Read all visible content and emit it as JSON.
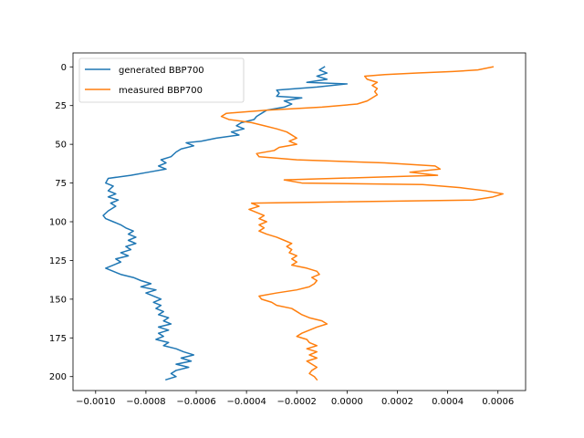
{
  "chart_data": {
    "type": "line",
    "title": "",
    "xlabel": "",
    "ylabel": "",
    "xlim": [
      -0.00109,
      0.00071
    ],
    "ylim": [
      209,
      -9
    ],
    "y_inverted": true,
    "grid": false,
    "legend_position": "top-left",
    "xticks": [
      {
        "value": -0.001,
        "label": "−0.0010"
      },
      {
        "value": -0.0008,
        "label": "−0.0008"
      },
      {
        "value": -0.0006,
        "label": "−0.0006"
      },
      {
        "value": -0.0004,
        "label": "−0.0004"
      },
      {
        "value": -0.0002,
        "label": "−0.0002"
      },
      {
        "value": 0.0,
        "label": "0.0000"
      },
      {
        "value": 0.0002,
        "label": "0.0002"
      },
      {
        "value": 0.0004,
        "label": "0.0004"
      },
      {
        "value": 0.0006,
        "label": "0.0006"
      }
    ],
    "yticks": [
      {
        "value": 0,
        "label": "0"
      },
      {
        "value": 25,
        "label": "25"
      },
      {
        "value": 50,
        "label": "50"
      },
      {
        "value": 75,
        "label": "75"
      },
      {
        "value": 100,
        "label": "100"
      },
      {
        "value": 125,
        "label": "125"
      },
      {
        "value": 150,
        "label": "150"
      },
      {
        "value": 175,
        "label": "175"
      },
      {
        "value": 200,
        "label": "200"
      }
    ],
    "series": [
      {
        "name": "generated BBP700",
        "color": "#1f77b4",
        "points": [
          [
            -9e-05,
            0
          ],
          [
            -0.00011,
            2
          ],
          [
            -8e-05,
            4
          ],
          [
            -0.00012,
            6
          ],
          [
            -8e-05,
            8
          ],
          [
            -0.00016,
            10
          ],
          [
            0.0,
            11
          ],
          [
            -0.00012,
            13
          ],
          [
            -0.00028,
            15
          ],
          [
            -0.00027,
            17
          ],
          [
            -0.00028,
            19
          ],
          [
            -0.00018,
            20
          ],
          [
            -0.00025,
            22
          ],
          [
            -0.00022,
            24
          ],
          [
            -0.00025,
            26
          ],
          [
            -0.00032,
            28
          ],
          [
            -0.00034,
            30
          ],
          [
            -0.00036,
            32
          ],
          [
            -0.00037,
            34
          ],
          [
            -0.00042,
            36
          ],
          [
            -0.00044,
            38
          ],
          [
            -0.00041,
            40
          ],
          [
            -0.00046,
            42
          ],
          [
            -0.00043,
            44
          ],
          [
            -0.00052,
            46
          ],
          [
            -0.00058,
            48
          ],
          [
            -0.00064,
            49
          ],
          [
            -0.00061,
            51
          ],
          [
            -0.00066,
            53
          ],
          [
            -0.00068,
            55
          ],
          [
            -0.0007,
            58
          ],
          [
            -0.00074,
            60
          ],
          [
            -0.00072,
            62
          ],
          [
            -0.00075,
            64
          ],
          [
            -0.00072,
            66
          ],
          [
            -0.00079,
            68
          ],
          [
            -0.00086,
            70
          ],
          [
            -0.00095,
            72
          ],
          [
            -0.00096,
            75
          ],
          [
            -0.00093,
            77
          ],
          [
            -0.00095,
            80
          ],
          [
            -0.00092,
            82
          ],
          [
            -0.00095,
            84
          ],
          [
            -0.00091,
            86
          ],
          [
            -0.00094,
            88
          ],
          [
            -0.00092,
            90
          ],
          [
            -0.00095,
            93
          ],
          [
            -0.00097,
            96
          ],
          [
            -0.00096,
            98
          ],
          [
            -0.00093,
            100
          ],
          [
            -0.0009,
            102
          ],
          [
            -0.00088,
            104
          ],
          [
            -0.00085,
            106
          ],
          [
            -0.00087,
            108
          ],
          [
            -0.00084,
            110
          ],
          [
            -0.00087,
            112
          ],
          [
            -0.00084,
            114
          ],
          [
            -0.00088,
            116
          ],
          [
            -0.00086,
            118
          ],
          [
            -0.0009,
            120
          ],
          [
            -0.00087,
            122
          ],
          [
            -0.00092,
            124
          ],
          [
            -0.0009,
            126
          ],
          [
            -0.00093,
            128
          ],
          [
            -0.00096,
            130
          ],
          [
            -0.00093,
            132
          ],
          [
            -0.0009,
            134
          ],
          [
            -0.00085,
            136
          ],
          [
            -0.00082,
            138
          ],
          [
            -0.00078,
            140
          ],
          [
            -0.00082,
            142
          ],
          [
            -0.00076,
            144
          ],
          [
            -0.0008,
            146
          ],
          [
            -0.00077,
            148
          ],
          [
            -0.00074,
            150
          ],
          [
            -0.00077,
            152
          ],
          [
            -0.00074,
            154
          ],
          [
            -0.00076,
            156
          ],
          [
            -0.00073,
            158
          ],
          [
            -0.00075,
            160
          ],
          [
            -0.00071,
            162
          ],
          [
            -0.00073,
            164
          ],
          [
            -0.0007,
            166
          ],
          [
            -0.00075,
            168
          ],
          [
            -0.00071,
            170
          ],
          [
            -0.00075,
            172
          ],
          [
            -0.00073,
            174
          ],
          [
            -0.00076,
            176
          ],
          [
            -0.00071,
            178
          ],
          [
            -0.00073,
            180
          ],
          [
            -0.00068,
            182
          ],
          [
            -0.00065,
            184
          ],
          [
            -0.00061,
            186
          ],
          [
            -0.00066,
            188
          ],
          [
            -0.00062,
            190
          ],
          [
            -0.00068,
            192
          ],
          [
            -0.00063,
            194
          ],
          [
            -0.00068,
            196
          ],
          [
            -0.0007,
            198
          ],
          [
            -0.00068,
            200
          ],
          [
            -0.00072,
            202
          ]
        ]
      },
      {
        "name": "measured BBP700",
        "color": "#ff7f0e",
        "points": [
          [
            0.00058,
            0
          ],
          [
            0.00052,
            2
          ],
          [
            0.00042,
            3
          ],
          [
            0.00028,
            4
          ],
          [
            0.00015,
            5
          ],
          [
            7e-05,
            6
          ],
          [
            8e-05,
            8
          ],
          [
            0.00012,
            10
          ],
          [
            0.0001,
            12
          ],
          [
            0.00012,
            14
          ],
          [
            0.00011,
            16
          ],
          [
            0.00012,
            18
          ],
          [
            0.0001,
            20
          ],
          [
            8e-05,
            22
          ],
          [
            4e-05,
            24
          ],
          [
            -0.0001,
            26
          ],
          [
            -0.00032,
            28
          ],
          [
            -0.00048,
            30
          ],
          [
            -0.0005,
            32
          ],
          [
            -0.00047,
            34
          ],
          [
            -0.00038,
            36
          ],
          [
            -0.00033,
            38
          ],
          [
            -0.00028,
            40
          ],
          [
            -0.00024,
            42
          ],
          [
            -0.00022,
            44
          ],
          [
            -0.0002,
            46
          ],
          [
            -0.00023,
            48
          ],
          [
            -0.0002,
            50
          ],
          [
            -0.00027,
            52
          ],
          [
            -0.00029,
            54
          ],
          [
            -0.00036,
            56
          ],
          [
            -0.00035,
            58
          ],
          [
            -0.0002,
            60
          ],
          [
            0.00015,
            62
          ],
          [
            0.00035,
            64
          ],
          [
            0.00037,
            66
          ],
          [
            0.00025,
            68
          ],
          [
            0.00036,
            70
          ],
          [
            -0.00025,
            73
          ],
          [
            -0.00018,
            75
          ],
          [
            0.0003,
            76
          ],
          [
            0.00045,
            78
          ],
          [
            0.00055,
            80
          ],
          [
            0.00062,
            82
          ],
          [
            0.00058,
            84
          ],
          [
            0.0005,
            86
          ],
          [
            -0.00038,
            88
          ],
          [
            -0.00035,
            90
          ],
          [
            -0.00039,
            92
          ],
          [
            -0.00036,
            94
          ],
          [
            -0.00033,
            96
          ],
          [
            -0.00035,
            98
          ],
          [
            -0.00032,
            100
          ],
          [
            -0.00035,
            102
          ],
          [
            -0.00033,
            104
          ],
          [
            -0.00035,
            106
          ],
          [
            -0.00032,
            108
          ],
          [
            -0.00028,
            110
          ],
          [
            -0.00025,
            112
          ],
          [
            -0.00022,
            114
          ],
          [
            -0.00024,
            116
          ],
          [
            -0.00022,
            118
          ],
          [
            -0.00023,
            120
          ],
          [
            -0.0002,
            122
          ],
          [
            -0.00022,
            124
          ],
          [
            -0.0002,
            126
          ],
          [
            -0.00022,
            128
          ],
          [
            -0.00016,
            130
          ],
          [
            -0.00012,
            132
          ],
          [
            -0.00011,
            134
          ],
          [
            -0.00014,
            136
          ],
          [
            -0.00012,
            138
          ],
          [
            -0.00013,
            140
          ],
          [
            -0.00015,
            142
          ],
          [
            -0.0002,
            144
          ],
          [
            -0.00028,
            146
          ],
          [
            -0.00035,
            148
          ],
          [
            -0.00034,
            150
          ],
          [
            -0.0003,
            152
          ],
          [
            -0.00028,
            154
          ],
          [
            -0.00022,
            156
          ],
          [
            -0.0002,
            158
          ],
          [
            -0.00018,
            160
          ],
          [
            -0.00015,
            162
          ],
          [
            -0.0001,
            164
          ],
          [
            -8e-05,
            166
          ],
          [
            -0.00012,
            168
          ],
          [
            -0.00015,
            170
          ],
          [
            -0.00018,
            172
          ],
          [
            -0.0002,
            174
          ],
          [
            -0.00016,
            176
          ],
          [
            -0.00015,
            178
          ],
          [
            -0.00012,
            180
          ],
          [
            -0.00016,
            182
          ],
          [
            -0.00012,
            184
          ],
          [
            -0.00015,
            186
          ],
          [
            -0.00012,
            188
          ],
          [
            -0.00016,
            190
          ],
          [
            -0.00014,
            192
          ],
          [
            -0.00012,
            194
          ],
          [
            -0.00014,
            196
          ],
          [
            -0.00015,
            198
          ],
          [
            -0.00013,
            200
          ],
          [
            -0.00012,
            202
          ]
        ]
      }
    ]
  }
}
